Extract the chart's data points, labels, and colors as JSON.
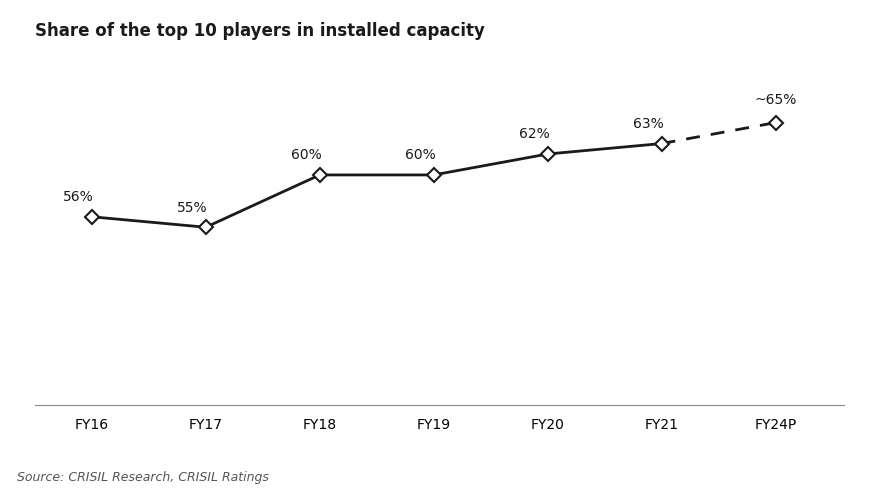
{
  "title": "Share of the top 10 players in installed capacity",
  "categories": [
    "FY16",
    "FY17",
    "FY18",
    "FY19",
    "FY20",
    "FY21",
    "FY24P"
  ],
  "x_positions": [
    0,
    1,
    2,
    3,
    4,
    5,
    6
  ],
  "values": [
    56,
    55,
    60,
    60,
    62,
    63,
    65
  ],
  "labels": [
    "56%",
    "55%",
    "60%",
    "60%",
    "62%",
    "63%",
    "~65%"
  ],
  "solid_indices": [
    0,
    1,
    2,
    3,
    4,
    5
  ],
  "dashed_indices": [
    5,
    6
  ],
  "line_color": "#1a1a1a",
  "marker_style": "D",
  "marker_size": 7,
  "marker_facecolor": "white",
  "marker_edgecolor": "#1a1a1a",
  "marker_edgewidth": 1.5,
  "line_width": 2.0,
  "ylim": [
    38,
    72
  ],
  "source_text": "Source: CRISIL Research, CRISIL Ratings",
  "title_fontsize": 12,
  "label_fontsize": 10,
  "tick_fontsize": 10,
  "source_fontsize": 9,
  "background_color": "#ffffff"
}
